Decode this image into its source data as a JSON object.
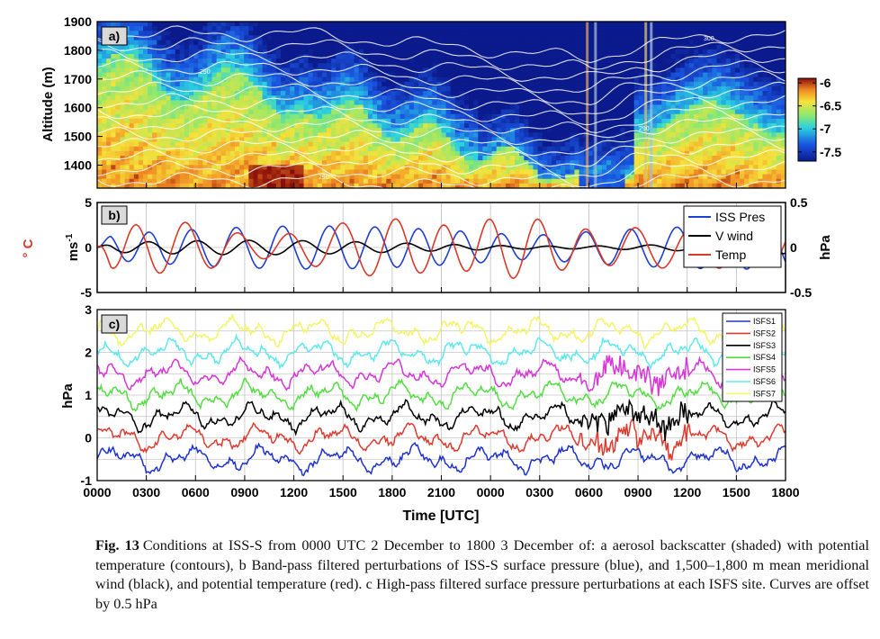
{
  "x_ticks": [
    "0000",
    "0300",
    "0600",
    "0900",
    "1200",
    "1500",
    "1800",
    "2100",
    "0000",
    "0300",
    "0600",
    "0900",
    "1200",
    "1500",
    "1800"
  ],
  "x_label": "Time [UTC]",
  "caption": {
    "label": "Fig. 13",
    "text": "Conditions at ISS-S from 0000 UTC 2 December to 1800 3 December of: a aerosol backscatter (shaded) with potential temperature (contours), b Band-pass filtered perturbations of ISS-S surface pressure (blue), and 1,500–1,800 m mean meridional wind (black), and potential temperature (red). c High-pass filtered surface pressure perturbations at each ISFS site. Curves are offset by 0.5 hPa"
  },
  "chart_data": [
    {
      "type": "heatmap",
      "panel_label": "a)",
      "ylabel": "Altitude (m)",
      "yticks": [
        1400,
        1500,
        1600,
        1700,
        1800,
        1900
      ],
      "ylim": [
        1320,
        1900
      ],
      "colorbar": {
        "ticks": [
          "-6",
          "-6.5",
          "-7",
          "-7.5"
        ],
        "range": [
          -7.7,
          -5.9
        ]
      },
      "contour_labels": [
        "290",
        "290",
        "290",
        "300"
      ],
      "colors": {
        "low": "#0a1f9c",
        "mid": "#22c4d8",
        "high": "#c81a14"
      }
    },
    {
      "type": "line",
      "panel_label": "b)",
      "ylabel_left": "ms",
      "ylabel_left_sup": "-1",
      "ylabel_left_outer": "° C",
      "ylabel_right": "hPa",
      "yticks_left": [
        "5",
        "0",
        "-5"
      ],
      "yticks_right": [
        "0.5",
        "0",
        "-0.5"
      ],
      "series": [
        {
          "name": "ISS Pres",
          "color": "#1f3fd0"
        },
        {
          "name": "V wind",
          "color": "#000000"
        },
        {
          "name": "Temp",
          "color": "#d63a2a"
        }
      ]
    },
    {
      "type": "line",
      "panel_label": "c)",
      "ylabel": "hPa",
      "yticks": [
        "3",
        "2",
        "1",
        "0",
        "-1"
      ],
      "ylim": [
        -1,
        3
      ],
      "series": [
        {
          "name": "ISFS1",
          "color": "#1f33cc",
          "offset": -0.5
        },
        {
          "name": "ISFS2",
          "color": "#dd3b30",
          "offset": 0.0
        },
        {
          "name": "ISFS3",
          "color": "#000000",
          "offset": 0.5
        },
        {
          "name": "ISFS4",
          "color": "#55dd44",
          "offset": 1.0
        },
        {
          "name": "ISFS5",
          "color": "#d636d6",
          "offset": 1.5
        },
        {
          "name": "ISFS6",
          "color": "#5ee8ee",
          "offset": 2.0
        },
        {
          "name": "ISFS7",
          "color": "#f4f46a",
          "offset": 2.5
        }
      ]
    }
  ]
}
